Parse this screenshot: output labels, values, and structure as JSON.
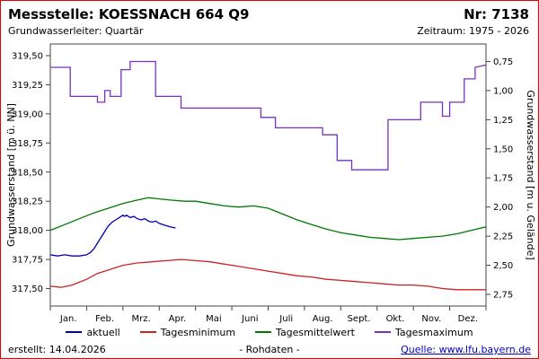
{
  "header": {
    "title": "Messstelle: KOESSNACH 664 Q9",
    "number": "Nr: 7138",
    "aquifer": "Grundwasserleiter: Quartär",
    "period": "Zeitraum: 1975 - 2026"
  },
  "chart_data": {
    "type": "line",
    "ylabel_left": "Grundwasserstand [m ü. NN]",
    "ylabel_right": "Grundwasserstand [m u. Gelände]",
    "ylim_left": [
      317.35,
      319.6
    ],
    "left_ticks": [
      317.5,
      317.75,
      318.0,
      318.25,
      318.5,
      318.75,
      319.0,
      319.25,
      319.5
    ],
    "right_ticks": [
      0.75,
      1.0,
      1.25,
      1.5,
      1.75,
      2.0,
      2.25,
      2.5,
      2.75
    ],
    "ground_elevation": 320.2,
    "x_months": [
      "Jan.",
      "Feb.",
      "Mrz.",
      "Apr.",
      "Mai",
      "Juni",
      "Juli",
      "Aug.",
      "Sept.",
      "Okt.",
      "Nov.",
      "Dez."
    ],
    "series": [
      {
        "name": "aktuell",
        "color": "#0000bb",
        "points": [
          [
            0,
            317.79
          ],
          [
            0.2,
            317.78
          ],
          [
            0.4,
            317.79
          ],
          [
            0.6,
            317.78
          ],
          [
            0.8,
            317.78
          ],
          [
            1.0,
            317.79
          ],
          [
            1.1,
            317.81
          ],
          [
            1.2,
            317.84
          ],
          [
            1.3,
            317.89
          ],
          [
            1.4,
            317.94
          ],
          [
            1.5,
            317.99
          ],
          [
            1.6,
            318.04
          ],
          [
            1.7,
            318.07
          ],
          [
            1.8,
            318.09
          ],
          [
            1.9,
            318.11
          ],
          [
            2.0,
            318.13
          ],
          [
            2.05,
            318.12
          ],
          [
            2.1,
            318.13
          ],
          [
            2.2,
            318.11
          ],
          [
            2.3,
            318.12
          ],
          [
            2.4,
            318.1
          ],
          [
            2.5,
            318.09
          ],
          [
            2.6,
            318.1
          ],
          [
            2.7,
            318.08
          ],
          [
            2.8,
            318.07
          ],
          [
            2.9,
            318.08
          ],
          [
            3.0,
            318.06
          ],
          [
            3.1,
            318.05
          ],
          [
            3.2,
            318.04
          ],
          [
            3.3,
            318.03
          ],
          [
            3.45,
            318.02
          ]
        ]
      },
      {
        "name": "Tagesminimum",
        "color": "#cc2222",
        "points": [
          [
            0,
            317.52
          ],
          [
            0.3,
            317.51
          ],
          [
            0.6,
            317.53
          ],
          [
            1.0,
            317.58
          ],
          [
            1.3,
            317.63
          ],
          [
            1.6,
            317.66
          ],
          [
            2.0,
            317.7
          ],
          [
            2.4,
            317.72
          ],
          [
            2.8,
            317.73
          ],
          [
            3.2,
            317.74
          ],
          [
            3.6,
            317.75
          ],
          [
            4.0,
            317.74
          ],
          [
            4.4,
            317.73
          ],
          [
            4.8,
            317.71
          ],
          [
            5.2,
            317.69
          ],
          [
            5.6,
            317.67
          ],
          [
            6.0,
            317.65
          ],
          [
            6.4,
            317.63
          ],
          [
            6.8,
            317.61
          ],
          [
            7.2,
            317.6
          ],
          [
            7.6,
            317.58
          ],
          [
            8.0,
            317.57
          ],
          [
            8.4,
            317.56
          ],
          [
            8.8,
            317.55
          ],
          [
            9.2,
            317.54
          ],
          [
            9.6,
            317.53
          ],
          [
            10.0,
            317.53
          ],
          [
            10.4,
            317.52
          ],
          [
            10.8,
            317.5
          ],
          [
            11.2,
            317.49
          ],
          [
            11.6,
            317.49
          ],
          [
            12,
            317.49
          ]
        ]
      },
      {
        "name": "Tagesmittelwert",
        "color": "#007700",
        "points": [
          [
            0,
            318.0
          ],
          [
            0.4,
            318.05
          ],
          [
            0.8,
            318.1
          ],
          [
            1.2,
            318.15
          ],
          [
            1.6,
            318.19
          ],
          [
            2.0,
            318.23
          ],
          [
            2.4,
            318.26
          ],
          [
            2.7,
            318.28
          ],
          [
            3.0,
            318.27
          ],
          [
            3.3,
            318.26
          ],
          [
            3.7,
            318.25
          ],
          [
            4.0,
            318.25
          ],
          [
            4.4,
            318.23
          ],
          [
            4.8,
            318.21
          ],
          [
            5.2,
            318.2
          ],
          [
            5.6,
            318.21
          ],
          [
            6.0,
            318.19
          ],
          [
            6.4,
            318.14
          ],
          [
            6.8,
            318.09
          ],
          [
            7.2,
            318.05
          ],
          [
            7.6,
            318.01
          ],
          [
            8.0,
            317.98
          ],
          [
            8.4,
            317.96
          ],
          [
            8.8,
            317.94
          ],
          [
            9.2,
            317.93
          ],
          [
            9.6,
            317.92
          ],
          [
            10.0,
            317.93
          ],
          [
            10.4,
            317.94
          ],
          [
            10.8,
            317.95
          ],
          [
            11.2,
            317.97
          ],
          [
            11.6,
            318.0
          ],
          [
            12,
            318.03
          ]
        ]
      },
      {
        "name": "Tagesmaximum",
        "color": "#7733bb",
        "points": [
          [
            0,
            319.4
          ],
          [
            0.55,
            319.4
          ],
          [
            0.55,
            319.15
          ],
          [
            1.3,
            319.15
          ],
          [
            1.3,
            319.1
          ],
          [
            1.5,
            319.1
          ],
          [
            1.5,
            319.2
          ],
          [
            1.65,
            319.2
          ],
          [
            1.65,
            319.15
          ],
          [
            1.95,
            319.15
          ],
          [
            1.95,
            319.38
          ],
          [
            2.2,
            319.38
          ],
          [
            2.2,
            319.45
          ],
          [
            2.9,
            319.45
          ],
          [
            2.9,
            319.15
          ],
          [
            3.6,
            319.15
          ],
          [
            3.6,
            319.05
          ],
          [
            5.8,
            319.05
          ],
          [
            5.8,
            318.97
          ],
          [
            6.2,
            318.97
          ],
          [
            6.2,
            318.88
          ],
          [
            7.5,
            318.88
          ],
          [
            7.5,
            318.82
          ],
          [
            7.9,
            318.82
          ],
          [
            7.9,
            318.6
          ],
          [
            8.3,
            318.6
          ],
          [
            8.3,
            318.52
          ],
          [
            9.3,
            318.52
          ],
          [
            9.3,
            318.95
          ],
          [
            10.2,
            318.95
          ],
          [
            10.2,
            319.1
          ],
          [
            10.8,
            319.1
          ],
          [
            10.8,
            318.98
          ],
          [
            11.0,
            318.98
          ],
          [
            11.0,
            319.1
          ],
          [
            11.4,
            319.1
          ],
          [
            11.4,
            319.3
          ],
          [
            11.7,
            319.3
          ],
          [
            11.7,
            319.4
          ],
          [
            12,
            319.42
          ]
        ]
      }
    ]
  },
  "legend": {
    "items": [
      "aktuell",
      "Tagesminimum",
      "Tagesmittelwert",
      "Tagesmaximum"
    ]
  },
  "footer": {
    "created": "erstellt: 14.04.2026",
    "center": "- Rohdaten -",
    "source": "Quelle: www.lfu.bayern.de"
  }
}
